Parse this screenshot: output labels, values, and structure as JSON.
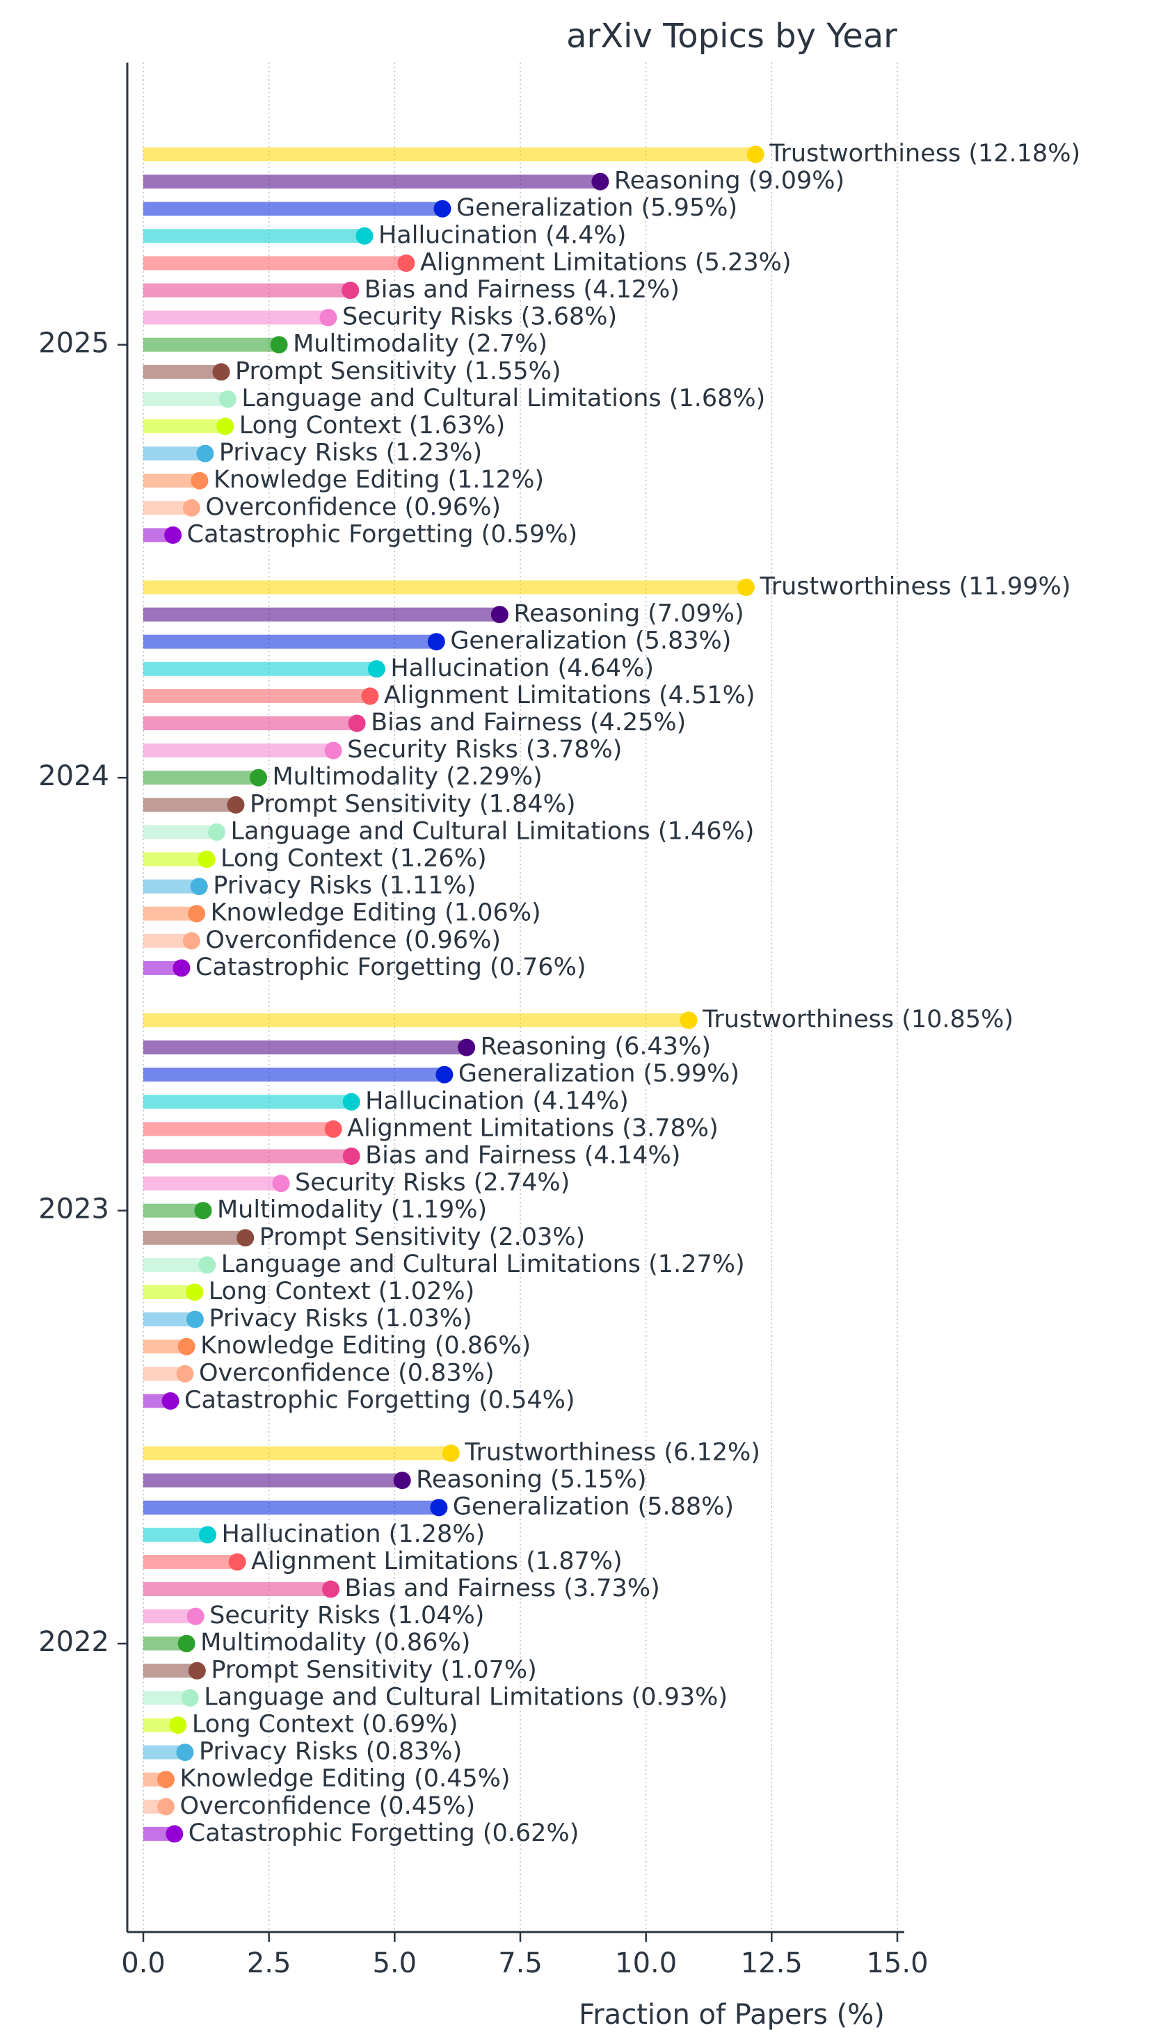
{
  "chart_data": {
    "type": "bar",
    "orientation": "horizontal",
    "style": "lollipop",
    "title": "arXiv Topics by Year",
    "xlabel": "Fraction of Papers (%)",
    "ylabel": "",
    "xlim": [
      -0.4,
      15.3
    ],
    "xticks": [
      0.0,
      2.5,
      5.0,
      7.5,
      10.0,
      12.5,
      15.0
    ],
    "xtick_labels": [
      "0.0",
      "2.5",
      "5.0",
      "7.5",
      "10.0",
      "12.5",
      "15.0"
    ],
    "grid": "vertical dotted",
    "groups": [
      "2025",
      "2024",
      "2023",
      "2022"
    ],
    "series": [
      {
        "name": "Trustworthiness",
        "color": "#FFD700",
        "values": [
          12.18,
          11.99,
          10.85,
          6.12
        ],
        "labels": [
          "Trustworthiness (12.18%)",
          "Trustworthiness (11.99%)",
          "Trustworthiness (10.85%)",
          "Trustworthiness (6.12%)"
        ]
      },
      {
        "name": "Reasoning",
        "color": "#4B0082",
        "values": [
          9.09,
          7.09,
          6.43,
          5.15
        ],
        "labels": [
          "Reasoning (9.09%)",
          "Reasoning (7.09%)",
          "Reasoning (6.43%)",
          "Reasoning (5.15%)"
        ]
      },
      {
        "name": "Generalization",
        "color": "#0022DD",
        "values": [
          5.95,
          5.83,
          5.99,
          5.88
        ],
        "labels": [
          "Generalization (5.95%)",
          "Generalization (5.83%)",
          "Generalization (5.99%)",
          "Generalization (5.88%)"
        ]
      },
      {
        "name": "Hallucination",
        "color": "#00CED1",
        "values": [
          4.4,
          4.64,
          4.14,
          1.28
        ],
        "labels": [
          "Hallucination (4.4%)",
          "Hallucination (4.64%)",
          "Hallucination (4.14%)",
          "Hallucination (1.28%)"
        ]
      },
      {
        "name": "Alignment Limitations",
        "color": "#FF5A5F",
        "values": [
          5.23,
          4.51,
          3.78,
          1.87
        ],
        "labels": [
          "Alignment Limitations (5.23%)",
          "Alignment Limitations (4.51%)",
          "Alignment Limitations (3.78%)",
          "Alignment Limitations (1.87%)"
        ]
      },
      {
        "name": "Bias and Fairness",
        "color": "#E83E8C",
        "values": [
          4.12,
          4.25,
          4.14,
          3.73
        ],
        "labels": [
          "Bias and Fairness (4.12%)",
          "Bias and Fairness (4.25%)",
          "Bias and Fairness (4.14%)",
          "Bias and Fairness (3.73%)"
        ]
      },
      {
        "name": "Security Risks",
        "color": "#F57FD0",
        "values": [
          3.68,
          3.78,
          2.74,
          1.04
        ],
        "labels": [
          "Security Risks (3.68%)",
          "Security Risks (3.78%)",
          "Security Risks (2.74%)",
          "Security Risks (1.04%)"
        ]
      },
      {
        "name": "Multimodality",
        "color": "#2CA02C",
        "values": [
          2.7,
          2.29,
          1.19,
          0.86
        ],
        "labels": [
          "Multimodality (2.7%)",
          "Multimodality (2.29%)",
          "Multimodality (1.19%)",
          "Multimodality (0.86%)"
        ]
      },
      {
        "name": "Prompt Sensitivity",
        "color": "#8B4A3E",
        "values": [
          1.55,
          1.84,
          2.03,
          1.07
        ],
        "labels": [
          "Prompt Sensitivity (1.55%)",
          "Prompt Sensitivity (1.84%)",
          "Prompt Sensitivity (2.03%)",
          "Prompt Sensitivity (1.07%)"
        ]
      },
      {
        "name": "Language and Cultural Limitations",
        "color": "#A8EFC7",
        "values": [
          1.68,
          1.46,
          1.27,
          0.93
        ],
        "labels": [
          "Language and Cultural Limitations (1.68%)",
          "Language and Cultural Limitations (1.46%)",
          "Language and Cultural Limitations (1.27%)",
          "Language and Cultural Limitations (0.93%)"
        ]
      },
      {
        "name": "Long Context",
        "color": "#CCFF00",
        "values": [
          1.63,
          1.26,
          1.02,
          0.69
        ],
        "labels": [
          "Long Context (1.63%)",
          "Long Context (1.26%)",
          "Long Context (1.02%)",
          "Long Context (0.69%)"
        ]
      },
      {
        "name": "Privacy Risks",
        "color": "#45B2E0",
        "values": [
          1.23,
          1.11,
          1.03,
          0.83
        ],
        "labels": [
          "Privacy Risks (1.23%)",
          "Privacy Risks (1.11%)",
          "Privacy Risks (1.03%)",
          "Privacy Risks (0.83%)"
        ]
      },
      {
        "name": "Knowledge Editing",
        "color": "#FF8C55",
        "values": [
          1.12,
          1.06,
          0.86,
          0.45
        ],
        "labels": [
          "Knowledge Editing (1.12%)",
          "Knowledge Editing (1.06%)",
          "Knowledge Editing (0.86%)",
          "Knowledge Editing (0.45%)"
        ]
      },
      {
        "name": "Overconfidence",
        "color": "#FFAB8B",
        "values": [
          0.96,
          0.96,
          0.83,
          0.45
        ],
        "labels": [
          "Overconfidence (0.96%)",
          "Overconfidence (0.96%)",
          "Overconfidence (0.83%)",
          "Overconfidence (0.45%)"
        ]
      },
      {
        "name": "Catastrophic Forgetting",
        "color": "#9400D3",
        "values": [
          0.59,
          0.76,
          0.54,
          0.62
        ],
        "labels": [
          "Catastrophic Forgetting (0.59%)",
          "Catastrophic Forgetting (0.76%)",
          "Catastrophic Forgetting (0.54%)",
          "Catastrophic Forgetting (0.62%)"
        ]
      }
    ]
  }
}
